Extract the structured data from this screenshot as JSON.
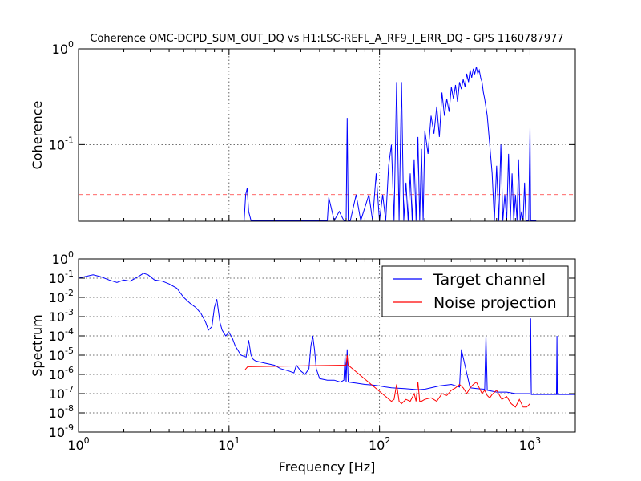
{
  "chart_data": [
    {
      "type": "line",
      "title": "Coherence OMC-DCPD_SUM_OUT_DQ vs H1:LSC-REFL_A_RF9_I_ERR_DQ - GPS 1160787977",
      "xlabel": "",
      "ylabel": "Coherence",
      "xscale": "log",
      "yscale": "log",
      "xlim": [
        1,
        2000
      ],
      "ylim": [
        0.0158,
        1
      ],
      "grid": true,
      "xticks": [],
      "yticks": [
        {
          "value": 1,
          "base": "10",
          "exp": "0"
        },
        {
          "value": 0.1,
          "base": "10",
          "exp": "-1"
        }
      ],
      "threshold": {
        "y": 0.03,
        "color": "#ff0000",
        "style": "dashed"
      },
      "series": [
        {
          "color": "#0000ff",
          "x": [
            12.6,
            12.9,
            13.2,
            13.5,
            14,
            14.5,
            28,
            45,
            46,
            50,
            54,
            58,
            60,
            61,
            62,
            64,
            70,
            75,
            80,
            85,
            90,
            95,
            100,
            105,
            110,
            115,
            120,
            125,
            130,
            135,
            140,
            145,
            150,
            155,
            160,
            165,
            170,
            175,
            180,
            185,
            190,
            195,
            200,
            210,
            220,
            230,
            240,
            250,
            260,
            270,
            280,
            290,
            300,
            310,
            320,
            330,
            340,
            350,
            360,
            370,
            380,
            390,
            400,
            410,
            420,
            430,
            440,
            450,
            460,
            470,
            480,
            490,
            500,
            520,
            540,
            560,
            580,
            600,
            620,
            640,
            660,
            680,
            700,
            720,
            740,
            760,
            780,
            800,
            820,
            840,
            860,
            880,
            900,
            920,
            940,
            960,
            980,
            1000,
            1010,
            1020,
            1050,
            1100
          ],
          "y": [
            0.016,
            0.03,
            0.035,
            0.02,
            0.016,
            0.016,
            0.016,
            0.016,
            0.028,
            0.016,
            0.02,
            0.016,
            0.016,
            0.19,
            0.016,
            0.016,
            0.03,
            0.016,
            0.022,
            0.03,
            0.016,
            0.05,
            0.016,
            0.03,
            0.016,
            0.06,
            0.1,
            0.016,
            0.45,
            0.016,
            0.45,
            0.016,
            0.04,
            0.016,
            0.05,
            0.016,
            0.07,
            0.016,
            0.12,
            0.016,
            0.09,
            0.016,
            0.14,
            0.08,
            0.2,
            0.13,
            0.25,
            0.12,
            0.35,
            0.2,
            0.3,
            0.22,
            0.4,
            0.3,
            0.42,
            0.28,
            0.45,
            0.38,
            0.48,
            0.4,
            0.55,
            0.45,
            0.6,
            0.5,
            0.62,
            0.55,
            0.65,
            0.55,
            0.6,
            0.5,
            0.45,
            0.35,
            0.3,
            0.2,
            0.1,
            0.05,
            0.016,
            0.06,
            0.016,
            0.1,
            0.016,
            0.03,
            0.016,
            0.08,
            0.016,
            0.05,
            0.016,
            0.03,
            0.016,
            0.07,
            0.016,
            0.02,
            0.016,
            0.04,
            0.016,
            0.016,
            0.016,
            0.15,
            0.016,
            0.016,
            0.016,
            0.016
          ]
        }
      ]
    },
    {
      "type": "line",
      "title": "",
      "xlabel": "Frequency [Hz]",
      "ylabel": "Spectrum",
      "xscale": "log",
      "yscale": "log",
      "xlim": [
        1,
        2000
      ],
      "ylim": [
        1e-09,
        1
      ],
      "grid": true,
      "xticks": [
        {
          "value": 1,
          "base": "10",
          "exp": "0"
        },
        {
          "value": 10,
          "base": "10",
          "exp": "1"
        },
        {
          "value": 100,
          "base": "10",
          "exp": "2"
        },
        {
          "value": 1000,
          "base": "10",
          "exp": "3"
        }
      ],
      "yticks": [
        {
          "value": 1,
          "base": "10",
          "exp": "0"
        },
        {
          "value": 0.1,
          "base": "10",
          "exp": "-1"
        },
        {
          "value": 0.01,
          "base": "10",
          "exp": "-2"
        },
        {
          "value": 0.001,
          "base": "10",
          "exp": "-3"
        },
        {
          "value": 0.0001,
          "base": "10",
          "exp": "-4"
        },
        {
          "value": 1e-05,
          "base": "10",
          "exp": "-5"
        },
        {
          "value": 1e-06,
          "base": "10",
          "exp": "-6"
        },
        {
          "value": 1e-07,
          "base": "10",
          "exp": "-7"
        },
        {
          "value": 1e-08,
          "base": "10",
          "exp": "-8"
        },
        {
          "value": 1e-09,
          "base": "10",
          "exp": "-9"
        }
      ],
      "legend_position": "top-right",
      "series": [
        {
          "name": "Target channel",
          "color": "#0000ff",
          "x": [
            1,
            1.1,
            1.25,
            1.4,
            1.6,
            1.8,
            2,
            2.2,
            2.5,
            2.7,
            2.9,
            3.2,
            3.6,
            4,
            4.5,
            5,
            5.5,
            6,
            6.5,
            7,
            7.3,
            7.7,
            8,
            8.3,
            8.7,
            9,
            9.5,
            10,
            10.5,
            11,
            12,
            13,
            13.5,
            14,
            14.5,
            15,
            17,
            20,
            22,
            25,
            27,
            28,
            30,
            32,
            34,
            35,
            36,
            37,
            38,
            40,
            45,
            50,
            55,
            58,
            59,
            60,
            61,
            62,
            70,
            80,
            90,
            100,
            110,
            120,
            150,
            180,
            200,
            250,
            300,
            340,
            350,
            400,
            450,
            500,
            510,
            520,
            600,
            700,
            800,
            900,
            1000,
            1010,
            1020,
            1100,
            1300,
            1500,
            1510,
            1520,
            1700,
            1900,
            1950,
            2000
          ],
          "y": [
            0.1,
            0.12,
            0.15,
            0.12,
            0.08,
            0.06,
            0.08,
            0.07,
            0.12,
            0.18,
            0.15,
            0.08,
            0.07,
            0.05,
            0.03,
            0.01,
            0.005,
            0.003,
            0.0015,
            0.0005,
            0.0002,
            0.0003,
            0.003,
            0.008,
            0.0005,
            0.0002,
            0.0001,
            0.00015,
            8e-05,
            3e-05,
            1e-05,
            8e-06,
            6e-05,
            1e-05,
            6e-06,
            5e-06,
            4e-06,
            3e-06,
            2e-06,
            1.5e-06,
            1.2e-06,
            3e-06,
            1.5e-06,
            1e-06,
            2e-06,
            3e-05,
            0.0001,
            2e-05,
            2e-06,
            6e-07,
            5e-07,
            5e-07,
            4e-07,
            5e-07,
            1e-05,
            4e-07,
            2e-05,
            4e-07,
            3.5e-07,
            3e-07,
            2.8e-07,
            2.5e-07,
            2.2e-07,
            2e-07,
            1.8e-07,
            1.6e-07,
            1.7e-07,
            2.5e-07,
            3e-07,
            2.2e-07,
            2e-05,
            2e-07,
            1.8e-07,
            1.7e-07,
            0.0001,
            1.5e-07,
            1.2e-07,
            1.2e-07,
            1e-07,
            1e-07,
            1e-07,
            0.0008,
            9e-08,
            9e-08,
            9e-08,
            9e-08,
            0.0001,
            9e-08,
            9e-08,
            9e-08,
            9e-08,
            9e-08
          ]
        },
        {
          "name": "Noise projection",
          "color": "#ff0000",
          "x": [
            12.8,
            13.3,
            60,
            61,
            62,
            120,
            125,
            130,
            135,
            140,
            150,
            160,
            170,
            175,
            180,
            185,
            190,
            200,
            220,
            240,
            260,
            280,
            300,
            320,
            340,
            360,
            380,
            400,
            420,
            440,
            460,
            480,
            500,
            520,
            540,
            560,
            600,
            650,
            700,
            750,
            800,
            850,
            900,
            950,
            1000
          ],
          "y": [
            1.8e-06,
            2.5e-06,
            3e-06,
            1e-05,
            3e-06,
            4e-08,
            5e-08,
            3e-07,
            4e-08,
            3e-08,
            5e-08,
            4e-08,
            1e-07,
            4e-08,
            4e-07,
            4e-08,
            4e-08,
            5e-08,
            6e-08,
            4e-08,
            1e-07,
            8e-08,
            1.5e-07,
            2e-07,
            3e-07,
            2e-07,
            1e-07,
            2e-07,
            3e-07,
            4e-07,
            2e-07,
            1e-07,
            1.5e-07,
            8e-08,
            6e-08,
            9e-08,
            1.5e-07,
            5e-08,
            7e-08,
            3e-08,
            2e-08,
            5e-08,
            2e-08,
            2e-08,
            3e-08
          ]
        }
      ]
    }
  ]
}
